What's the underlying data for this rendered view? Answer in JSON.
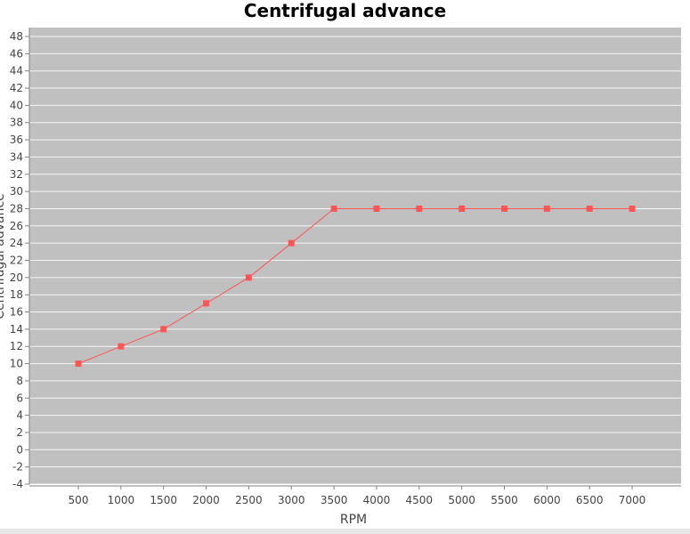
{
  "chart_data": {
    "type": "line",
    "title": "Centrifugal advance",
    "xlabel": "RPM",
    "ylabel": "Centrifugal advance",
    "categories": [
      "500",
      "1000",
      "1500",
      "2000",
      "2500",
      "3000",
      "3500",
      "4000",
      "4500",
      "5000",
      "5500",
      "6000",
      "6500",
      "7000"
    ],
    "series": [
      {
        "name": "",
        "values": [
          10,
          12,
          14,
          17,
          20,
          24,
          28,
          28,
          28,
          28,
          28,
          28,
          28,
          28
        ]
      }
    ],
    "ylim": [
      -4,
      48
    ],
    "ytick_step": 2,
    "grid": true,
    "legend": "none",
    "colors": {
      "plot_background": "#c0c0c0",
      "gridline": "#ffffff",
      "series": "#ff5555",
      "axis": "#808080"
    }
  }
}
